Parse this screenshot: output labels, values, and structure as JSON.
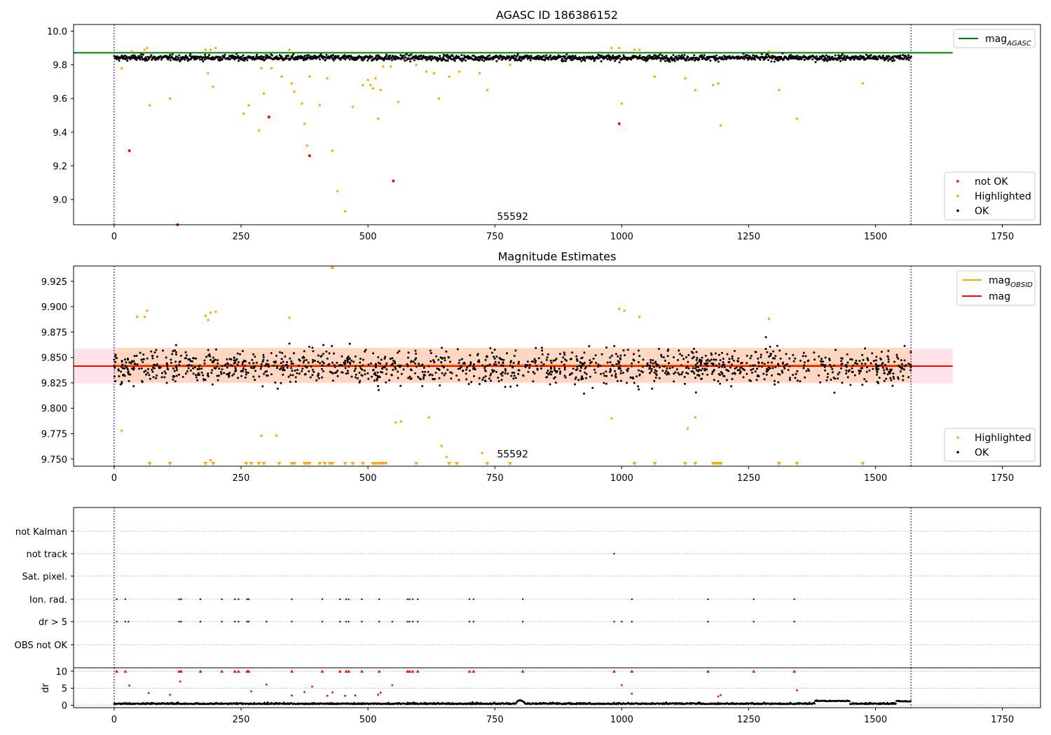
{
  "chart_data": [
    {
      "type": "scatter",
      "title": "AGASC ID 186386152",
      "xlim": [
        -80,
        1825
      ],
      "ylim": [
        8.85,
        10.04
      ],
      "xticks": [
        0,
        250,
        500,
        750,
        1000,
        1250,
        1500,
        1750
      ],
      "yticks": [
        9.0,
        9.2,
        9.4,
        9.6,
        9.8,
        10.0
      ],
      "ytick_labels": [
        "9.0",
        "9.2",
        "9.4",
        "9.6",
        "9.8",
        "10.0"
      ],
      "annotation": {
        "text": "55592",
        "x": 785,
        "y": 8.88
      },
      "vlines": [
        0,
        1570
      ],
      "hline": {
        "name": "mag_AGASC",
        "y": 9.872,
        "x0": -80,
        "x1": 1652,
        "color": "#008000"
      },
      "legend_top": [
        {
          "label": "mag",
          "sub": "AGASC",
          "color": "#008000"
        }
      ],
      "legend_bottom": [
        {
          "label": "not OK",
          "color": "#ff0000"
        },
        {
          "label": "Highlighted",
          "color": "#ffa500"
        },
        {
          "label": "OK",
          "color": "#000000"
        }
      ],
      "ok": {
        "x_start": 0,
        "x_end": 1570,
        "mean": 9.842,
        "spread": 0.015
      },
      "highlighted_x": [
        15,
        35,
        60,
        65,
        70,
        110,
        180,
        185,
        190,
        195,
        200,
        255,
        265,
        285,
        290,
        295,
        310,
        330,
        345,
        350,
        355,
        370,
        375,
        380,
        385,
        405,
        420,
        430,
        440,
        455,
        470,
        490,
        500,
        505,
        510,
        515,
        520,
        525,
        530,
        545,
        560,
        595,
        615,
        630,
        640,
        660,
        680,
        720,
        735,
        780,
        980,
        995,
        1000,
        1025,
        1035,
        1065,
        1125,
        1145,
        1180,
        1190,
        1195,
        1290,
        1310,
        1345,
        1475
      ],
      "highlighted_y": [
        9.78,
        9.88,
        9.89,
        9.9,
        9.56,
        9.6,
        9.89,
        9.75,
        9.89,
        9.67,
        9.9,
        9.51,
        9.56,
        9.41,
        9.78,
        9.63,
        9.78,
        9.73,
        9.89,
        9.69,
        9.64,
        9.57,
        9.45,
        9.32,
        9.73,
        9.56,
        9.72,
        9.29,
        9.05,
        8.93,
        9.55,
        9.68,
        9.71,
        9.68,
        9.66,
        9.72,
        9.48,
        9.65,
        9.79,
        9.79,
        9.58,
        9.8,
        9.76,
        9.75,
        9.6,
        9.73,
        9.76,
        9.75,
        9.65,
        9.8,
        9.9,
        9.9,
        9.57,
        9.89,
        9.89,
        9.73,
        9.72,
        9.65,
        9.68,
        9.69,
        9.44,
        9.88,
        9.65,
        9.48,
        9.69
      ],
      "notok_x": [
        30,
        125,
        305,
        385,
        550,
        995
      ],
      "notok_y": [
        9.29,
        8.85,
        9.49,
        9.26,
        9.11,
        9.45
      ]
    },
    {
      "type": "scatter",
      "title": "Magnitude Estimates",
      "xlim": [
        -80,
        1825
      ],
      "ylim": [
        9.743,
        9.94
      ],
      "xticks": [
        0,
        250,
        500,
        750,
        1000,
        1250,
        1500,
        1750
      ],
      "yticks": [
        9.75,
        9.775,
        9.8,
        9.825,
        9.85,
        9.875,
        9.9,
        9.925
      ],
      "ytick_labels": [
        "9.750",
        "9.775",
        "9.800",
        "9.825",
        "9.850",
        "9.875",
        "9.900",
        "9.925"
      ],
      "annotation": {
        "text": "55592",
        "x": 785,
        "y": 9.7515
      },
      "vlines": [
        0,
        1570
      ],
      "mag_line": {
        "y": 9.8415,
        "band": [
          9.8245,
          9.8585
        ],
        "x0": -80,
        "x1": 1652,
        "color": "#ff0000",
        "band_color": "#ffc0cb"
      },
      "obsid_line": {
        "y": 9.8425,
        "band": [
          9.8255,
          9.8595
        ],
        "x0": 0,
        "x1": 1570,
        "color": "#ffa500",
        "band_color": "#ffd0b0"
      },
      "legend_top": [
        {
          "label": "mag",
          "sub": "OBSID",
          "color": "#ffa500"
        },
        {
          "label": "mag",
          "sub": "",
          "color": "#ff0000"
        }
      ],
      "legend_bottom": [
        {
          "label": "Highlighted",
          "color": "#ffa500"
        },
        {
          "label": "OK",
          "color": "#000000"
        }
      ],
      "ok": {
        "x_start": 0,
        "x_end": 1570,
        "mean": 9.841,
        "spread": 0.017
      },
      "highlighted_x": [
        15,
        45,
        60,
        65,
        180,
        185,
        190,
        200,
        345,
        980,
        995,
        1005,
        1035,
        1290,
        290,
        320,
        555,
        565,
        620,
        645,
        655,
        725,
        190,
        430,
        1130,
        1145
      ],
      "highlighted_y": [
        9.778,
        9.89,
        9.89,
        9.896,
        9.891,
        9.887,
        9.894,
        9.895,
        9.889,
        9.79,
        9.898,
        9.896,
        9.89,
        9.888,
        9.773,
        9.773,
        9.786,
        9.787,
        9.791,
        9.763,
        9.752,
        9.756,
        9.749,
        9.938,
        9.78,
        9.791
      ],
      "clipped_x": [
        70,
        110,
        180,
        195,
        260,
        270,
        285,
        295,
        325,
        350,
        355,
        375,
        380,
        385,
        405,
        415,
        425,
        430,
        455,
        470,
        490,
        510,
        515,
        520,
        525,
        530,
        535,
        595,
        660,
        675,
        735,
        780,
        1025,
        1065,
        1125,
        1145,
        1180,
        1185,
        1190,
        1195,
        1310,
        1345,
        1475
      ]
    },
    {
      "type": "scatter",
      "title": "",
      "xlim": [
        -80,
        1825
      ],
      "categories": [
        "not Kalman",
        "not track",
        "Sat. pixel.",
        "Ion. rad.",
        "dr > 5",
        "OBS not OK"
      ],
      "vlines": [
        0,
        1570
      ],
      "flags": {
        "not track": [
          985
        ],
        "Ion. rad.": [
          5,
          22,
          128,
          132,
          170,
          212,
          238,
          245,
          262,
          265,
          350,
          410,
          445,
          457,
          462,
          488,
          522,
          578,
          582,
          588,
          598,
          700,
          708,
          805,
          1020,
          1170,
          1260,
          1340
        ],
        "dr > 5": [
          5,
          22,
          28,
          128,
          132,
          170,
          212,
          238,
          245,
          262,
          265,
          300,
          350,
          410,
          445,
          457,
          462,
          488,
          522,
          548,
          578,
          582,
          588,
          598,
          700,
          708,
          805,
          985,
          1000,
          1020,
          1170,
          1260,
          1340
        ]
      }
    },
    {
      "type": "scatter",
      "title": "",
      "ylabel": "dr",
      "xlim": [
        -80,
        1825
      ],
      "ylim": [
        -0.7,
        11
      ],
      "xticks": [
        0,
        250,
        500,
        750,
        1000,
        1250,
        1500,
        1750
      ],
      "yticks": [
        0,
        5,
        10
      ],
      "ytick_labels": [
        "0",
        "5",
        "10"
      ],
      "vlines": [
        0,
        1570
      ],
      "clipped_x": [
        5,
        22,
        128,
        132,
        170,
        212,
        238,
        245,
        262,
        265,
        350,
        410,
        445,
        457,
        462,
        488,
        522,
        578,
        582,
        588,
        598,
        700,
        708,
        805,
        985,
        1020,
        1170,
        1260,
        1340
      ],
      "outliers_x": [
        30,
        68,
        110,
        130,
        270,
        300,
        350,
        375,
        390,
        420,
        430,
        455,
        475,
        520,
        525,
        548,
        1000,
        1020,
        1190,
        1195,
        1345
      ],
      "outliers_y": [
        5.8,
        3.6,
        3.1,
        7.0,
        4.1,
        6.1,
        2.9,
        3.9,
        5.5,
        2.8,
        3.8,
        2.8,
        2.9,
        3.1,
        3.7,
        5.9,
        5.9,
        3.4,
        2.6,
        3.0,
        4.4
      ]
    }
  ]
}
